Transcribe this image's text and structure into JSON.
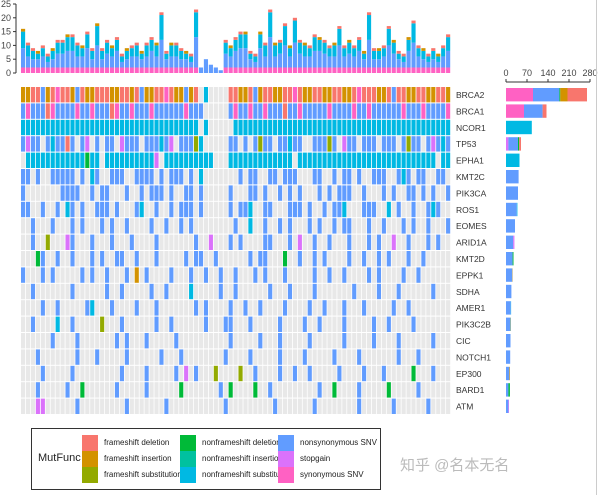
{
  "chart_data": {
    "type": "heatmap",
    "subtype": "oncoprint",
    "genes": [
      "BRCA2",
      "BRCA1",
      "NCOR1",
      "TP53",
      "EPHA1",
      "KMT2C",
      "PIK3CA",
      "ROS1",
      "EOMES",
      "ARID1A",
      "KMT2D",
      "EPPK1",
      "SDHA",
      "AMER1",
      "PIK3C2B",
      "CIC",
      "NOTCH1",
      "EP300",
      "BARD1",
      "ATM"
    ],
    "mutation_codes": {
      "a": {
        "label": "frameshift deletion",
        "color": "#F8766D"
      },
      "b": {
        "label": "frameshift insertion",
        "color": "#D39200"
      },
      "c": {
        "label": "frameshift substitution",
        "color": "#93AA00"
      },
      "d": {
        "label": "nonframeshift deletion",
        "color": "#00BA38"
      },
      "e": {
        "label": "nonframeshift insertion",
        "color": "#00C19F"
      },
      "f": {
        "label": "nonframeshift substitution",
        "color": "#00B9E3"
      },
      "g": {
        "label": "nonsynonymous SNV",
        "color": "#619CFF"
      },
      "h": {
        "label": "stopgain",
        "color": "#DB72FB"
      },
      "i": {
        "label": "synonymous SNV",
        "color": "#FF61C3"
      }
    },
    "empty_color": "#E8E8E8",
    "matrix": {
      "BRCA2": "bbaagbaiaabgabbaaabbaabagbbaaiabbgba.f....aabbagbaabbaaiabbaabbaabbaiaaabbagaabbaabbaab",
      "BRCA1": "gigggaiggggiggigggaiggigggiggggggiggg.....giggiggigggaggigggggiggggiggiggggggigggiggggig",
      "NCOR1": "ffffffffffffffffffffffffffffffffffff.f.....fffffffffffffffffffffffffffffffffffffffffffff",
      "TP53": "ghgg.gfggag.gh.g.gg.hggg.gggfgh.gggcf.....gg.g.gcgg.ggfgg..gggcg.hgg.ggg.ggg.gcgg.ghgfg",
      "EPHA1": ".ffffffffffffdff.ffffffffffh.ffffffffff...fffffffffffff.ffffffffffffffffffffffffffff.ff",
      "KMT2C": "gg.g..ggggg.g.fg..ggg..gggg.g.ggg.g.f.......g.gg..gg.ggg...gg..g.gg.g..ggg..gfg.gg..gg.g",
      "PIK3CA": "g.......gggg..g.gg...g..g.ggg.g..gg.g.....g...gg.g..g.g.g...g.g.ggg..g...g.g..gg.g.g..g",
      "ROS1": "gg..g..g.fg.g..ggg.g...gf..g..g.ggg.g.....g.ggf..gg...ggg.g..g.ggf...ggg..f.g..g..gfg..",
      "EOMES": "..g...g...g.g...g.g..g....g..g..g.g........g..f..g..g.g...g.g..g.gg...g..g...g.g..g...g",
      "ARID1A": "..g..c...hg...g...g...g....g.......g..h...g.g....gg...g.h..g..g...g...g.g..h..g...g.g..",
      "KMT2D": "...dg..g..g...g.g..gg..g...g.....g.gg..g......g.gg...d..g..g.g....g..g..g.g...g..g..",
      "EPPK1": "g...g.g.....g.g..g...g.b.g....g...g..g..g..g...g.g...g.....g..g..g....g.g....g..g..",
      "SDHA": "..g.......g......g..g.....g..g....f.....g..g......g...g....g.......g....g...g......g.",
      "AMER1": "....g..g.....gf...g....g...g.......g.g....g..g..g....g....g..g...g...g.....g..g.....",
      "PIK3C2B": "..g....f..g.....c...g......g..g......g...gg...g.....g....g..g....g.....g..g....g....",
      "CIC": "......g....g.......g.g...g.....g..........g.....g...g.....g......g.....g....g......g.",
      "NOTCH1": "...g.......g...g.....g......g...g........g....g.....g....g.....g....g.......g...g....",
      "EP300": "....g.....g.........g....g.....g.h.g...c....c..g....g..g..g.....g....g...g.....d...g",
      "BARD1": "...g.....g..d......g.....g......d.......g.d....d..g.........g..d....g.....d.....g...",
      "ATM": "...hh......g.........g.......g...........g.........g.......g........g......g......g."
    },
    "top_bar": {
      "ylim": [
        0,
        25
      ],
      "yticks": [
        "0",
        "5",
        "10",
        "15",
        "20",
        "25"
      ],
      "column_totals": [
        16,
        11,
        9,
        8,
        10,
        7,
        9,
        12,
        12,
        14,
        14,
        11,
        10,
        15,
        9,
        18,
        9,
        12,
        10,
        13,
        7,
        9,
        10,
        11,
        8,
        11,
        13,
        11,
        22,
        8,
        11,
        11,
        9,
        8,
        7,
        23,
        2,
        5,
        3,
        2,
        1,
        12,
        10,
        13,
        15,
        15,
        8,
        7,
        15,
        11,
        23,
        11,
        12,
        18,
        10,
        20,
        12,
        11,
        10,
        14,
        13,
        12,
        10,
        11,
        17,
        10,
        12,
        10,
        13,
        8,
        22,
        9,
        9,
        10,
        17,
        12,
        8,
        7,
        13,
        19,
        10,
        9,
        7,
        9,
        7,
        10,
        14
      ]
    },
    "right_bar": {
      "xlim": [
        0,
        280
      ],
      "xticks": [
        "0",
        "70",
        "140",
        "210",
        "280"
      ],
      "segments": {
        "BRCA2": [
          [
            "i",
            90
          ],
          [
            "g",
            88
          ],
          [
            "d",
            3
          ],
          [
            "b",
            24
          ],
          [
            "a",
            65
          ]
        ],
        "BRCA1": [
          [
            "i",
            60
          ],
          [
            "g",
            62
          ],
          [
            "a",
            13
          ]
        ],
        "NCOR1": [
          [
            "f",
            86
          ]
        ],
        "TP53": [
          [
            "h",
            8
          ],
          [
            "g",
            32
          ],
          [
            "d",
            4
          ],
          [
            "a",
            6
          ]
        ],
        "EPHA1": [
          [
            "f",
            45
          ]
        ],
        "KMT2C": [
          [
            "g",
            42
          ]
        ],
        "PIK3CA": [
          [
            "g",
            40
          ]
        ],
        "ROS1": [
          [
            "g",
            36
          ],
          [
            "f",
            2
          ]
        ],
        "EOMES": [
          [
            "g",
            30
          ]
        ],
        "ARID1A": [
          [
            "g",
            24
          ],
          [
            "h",
            4
          ]
        ],
        "KMT2D": [
          [
            "g",
            22
          ],
          [
            "d",
            3
          ]
        ],
        "EPPK1": [
          [
            "g",
            21
          ],
          [
            "b",
            1
          ]
        ],
        "SDHA": [
          [
            "g",
            18
          ]
        ],
        "AMER1": [
          [
            "g",
            16
          ],
          [
            "f",
            1
          ]
        ],
        "PIK3C2B": [
          [
            "g",
            15
          ],
          [
            "c",
            1
          ]
        ],
        "CIC": [
          [
            "g",
            15
          ]
        ],
        "NOTCH1": [
          [
            "g",
            14
          ]
        ],
        "EP300": [
          [
            "g",
            10
          ],
          [
            "c",
            2
          ],
          [
            "h",
            1
          ]
        ],
        "BARD1": [
          [
            "g",
            8
          ],
          [
            "d",
            5
          ]
        ],
        "ATM": [
          [
            "g",
            8
          ],
          [
            "h",
            2
          ]
        ]
      }
    },
    "legend": {
      "title": "MutFunc",
      "items": [
        "frameshift deletion",
        "frameshift insertion",
        "frameshift substitution",
        "nonframeshift deletion",
        "nonframeshift insertion",
        "nonframeshift substitution",
        "nonsynonymous SNV",
        "stopgain",
        "synonymous SNV"
      ],
      "colors": [
        "#F8766D",
        "#D39200",
        "#93AA00",
        "#00BA38",
        "#00C19F",
        "#00B9E3",
        "#619CFF",
        "#DB72FB",
        "#FF61C3"
      ]
    }
  },
  "watermark": "知乎 @名本无名"
}
